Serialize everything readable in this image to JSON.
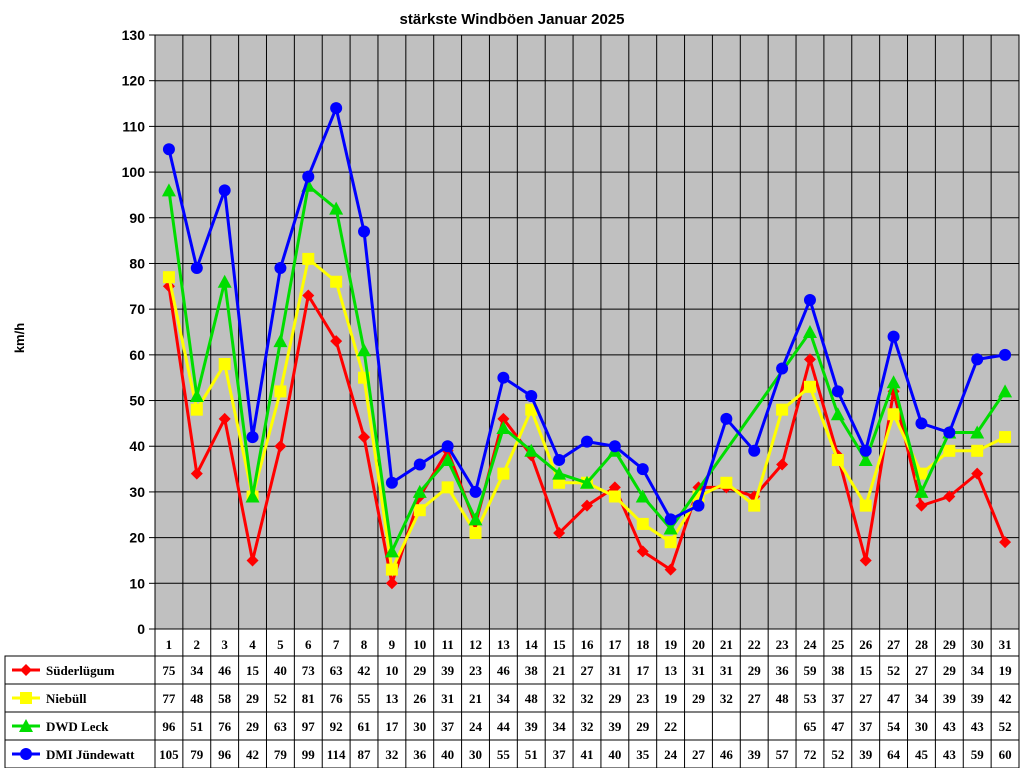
{
  "chart_data": {
    "type": "line",
    "title": "stärkste Windböen Januar 2025",
    "ylabel": "km/h",
    "ylim": [
      0,
      130
    ],
    "yticks": [
      0,
      10,
      20,
      30,
      40,
      50,
      60,
      70,
      80,
      90,
      100,
      110,
      120,
      130
    ],
    "grid": true,
    "legend": "table-bottom",
    "x": [
      "1",
      "2",
      "3",
      "4",
      "5",
      "6",
      "7",
      "8",
      "9",
      "10",
      "11",
      "12",
      "13",
      "14",
      "15",
      "16",
      "17",
      "18",
      "19",
      "20",
      "21",
      "22",
      "23",
      "24",
      "25",
      "26",
      "27",
      "28",
      "29",
      "30",
      "31"
    ],
    "series": [
      {
        "name": "Süderlügum",
        "color": "#ff0000",
        "marker": "diamond",
        "values": [
          75,
          34,
          46,
          15,
          40,
          73,
          63,
          42,
          10,
          29,
          39,
          23,
          46,
          38,
          21,
          27,
          31,
          17,
          13,
          31,
          31,
          29,
          36,
          59,
          38,
          15,
          52,
          27,
          29,
          34,
          19
        ]
      },
      {
        "name": "Niebüll",
        "color": "#ffff00",
        "marker": "square",
        "values": [
          77,
          48,
          58,
          29,
          52,
          81,
          76,
          55,
          13,
          26,
          31,
          21,
          34,
          48,
          32,
          32,
          29,
          23,
          19,
          29,
          32,
          27,
          48,
          53,
          37,
          27,
          47,
          34,
          39,
          39,
          42
        ]
      },
      {
        "name": "DWD Leck",
        "color": "#00dd00",
        "marker": "triangle",
        "values": [
          96,
          51,
          76,
          29,
          63,
          97,
          92,
          61,
          17,
          30,
          37,
          24,
          44,
          39,
          34,
          32,
          39,
          29,
          22,
          null,
          null,
          null,
          null,
          65,
          47,
          37,
          54,
          30,
          43,
          43,
          52
        ]
      },
      {
        "name": "DMI Jündewatt",
        "color": "#0000ff",
        "marker": "circle",
        "values": [
          105,
          79,
          96,
          42,
          79,
          99,
          114,
          87,
          32,
          36,
          40,
          30,
          55,
          51,
          37,
          41,
          40,
          35,
          24,
          27,
          46,
          39,
          57,
          72,
          52,
          39,
          64,
          45,
          43,
          59,
          60
        ]
      }
    ]
  }
}
